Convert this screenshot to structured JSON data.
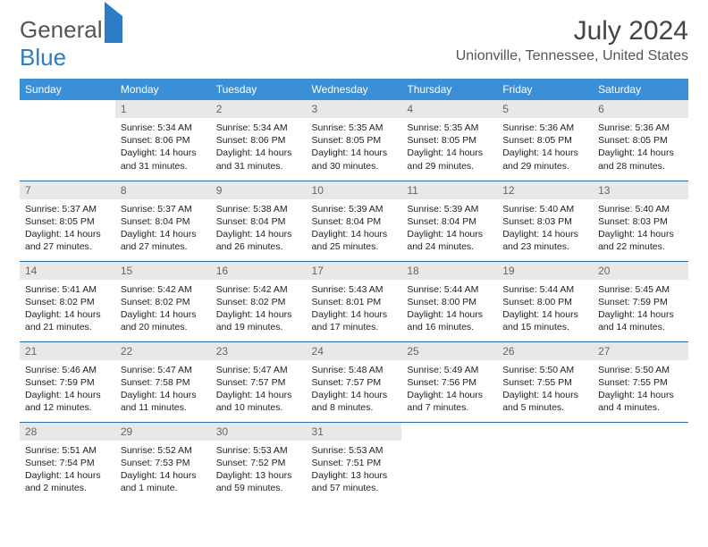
{
  "logo": {
    "part1": "General",
    "part2": "Blue"
  },
  "header": {
    "title": "July 2024",
    "location": "Unionville, Tennessee, United States"
  },
  "colors": {
    "header_bg": "#3b8fd6",
    "daynum_bg": "#e8e8e8",
    "accent": "#2b7cc4",
    "row_border": "#2b6fa8"
  },
  "weekdays": [
    "Sunday",
    "Monday",
    "Tuesday",
    "Wednesday",
    "Thursday",
    "Friday",
    "Saturday"
  ],
  "weeks": [
    [
      null,
      {
        "n": "1",
        "sr": "5:34 AM",
        "ss": "8:06 PM",
        "d": "14 hours and 31 minutes."
      },
      {
        "n": "2",
        "sr": "5:34 AM",
        "ss": "8:06 PM",
        "d": "14 hours and 31 minutes."
      },
      {
        "n": "3",
        "sr": "5:35 AM",
        "ss": "8:05 PM",
        "d": "14 hours and 30 minutes."
      },
      {
        "n": "4",
        "sr": "5:35 AM",
        "ss": "8:05 PM",
        "d": "14 hours and 29 minutes."
      },
      {
        "n": "5",
        "sr": "5:36 AM",
        "ss": "8:05 PM",
        "d": "14 hours and 29 minutes."
      },
      {
        "n": "6",
        "sr": "5:36 AM",
        "ss": "8:05 PM",
        "d": "14 hours and 28 minutes."
      }
    ],
    [
      {
        "n": "7",
        "sr": "5:37 AM",
        "ss": "8:05 PM",
        "d": "14 hours and 27 minutes."
      },
      {
        "n": "8",
        "sr": "5:37 AM",
        "ss": "8:04 PM",
        "d": "14 hours and 27 minutes."
      },
      {
        "n": "9",
        "sr": "5:38 AM",
        "ss": "8:04 PM",
        "d": "14 hours and 26 minutes."
      },
      {
        "n": "10",
        "sr": "5:39 AM",
        "ss": "8:04 PM",
        "d": "14 hours and 25 minutes."
      },
      {
        "n": "11",
        "sr": "5:39 AM",
        "ss": "8:04 PM",
        "d": "14 hours and 24 minutes."
      },
      {
        "n": "12",
        "sr": "5:40 AM",
        "ss": "8:03 PM",
        "d": "14 hours and 23 minutes."
      },
      {
        "n": "13",
        "sr": "5:40 AM",
        "ss": "8:03 PM",
        "d": "14 hours and 22 minutes."
      }
    ],
    [
      {
        "n": "14",
        "sr": "5:41 AM",
        "ss": "8:02 PM",
        "d": "14 hours and 21 minutes."
      },
      {
        "n": "15",
        "sr": "5:42 AM",
        "ss": "8:02 PM",
        "d": "14 hours and 20 minutes."
      },
      {
        "n": "16",
        "sr": "5:42 AM",
        "ss": "8:02 PM",
        "d": "14 hours and 19 minutes."
      },
      {
        "n": "17",
        "sr": "5:43 AM",
        "ss": "8:01 PM",
        "d": "14 hours and 17 minutes."
      },
      {
        "n": "18",
        "sr": "5:44 AM",
        "ss": "8:00 PM",
        "d": "14 hours and 16 minutes."
      },
      {
        "n": "19",
        "sr": "5:44 AM",
        "ss": "8:00 PM",
        "d": "14 hours and 15 minutes."
      },
      {
        "n": "20",
        "sr": "5:45 AM",
        "ss": "7:59 PM",
        "d": "14 hours and 14 minutes."
      }
    ],
    [
      {
        "n": "21",
        "sr": "5:46 AM",
        "ss": "7:59 PM",
        "d": "14 hours and 12 minutes."
      },
      {
        "n": "22",
        "sr": "5:47 AM",
        "ss": "7:58 PM",
        "d": "14 hours and 11 minutes."
      },
      {
        "n": "23",
        "sr": "5:47 AM",
        "ss": "7:57 PM",
        "d": "14 hours and 10 minutes."
      },
      {
        "n": "24",
        "sr": "5:48 AM",
        "ss": "7:57 PM",
        "d": "14 hours and 8 minutes."
      },
      {
        "n": "25",
        "sr": "5:49 AM",
        "ss": "7:56 PM",
        "d": "14 hours and 7 minutes."
      },
      {
        "n": "26",
        "sr": "5:50 AM",
        "ss": "7:55 PM",
        "d": "14 hours and 5 minutes."
      },
      {
        "n": "27",
        "sr": "5:50 AM",
        "ss": "7:55 PM",
        "d": "14 hours and 4 minutes."
      }
    ],
    [
      {
        "n": "28",
        "sr": "5:51 AM",
        "ss": "7:54 PM",
        "d": "14 hours and 2 minutes."
      },
      {
        "n": "29",
        "sr": "5:52 AM",
        "ss": "7:53 PM",
        "d": "14 hours and 1 minute."
      },
      {
        "n": "30",
        "sr": "5:53 AM",
        "ss": "7:52 PM",
        "d": "13 hours and 59 minutes."
      },
      {
        "n": "31",
        "sr": "5:53 AM",
        "ss": "7:51 PM",
        "d": "13 hours and 57 minutes."
      },
      null,
      null,
      null
    ]
  ],
  "labels": {
    "sunrise": "Sunrise: ",
    "sunset": "Sunset: ",
    "daylight": "Daylight: "
  }
}
